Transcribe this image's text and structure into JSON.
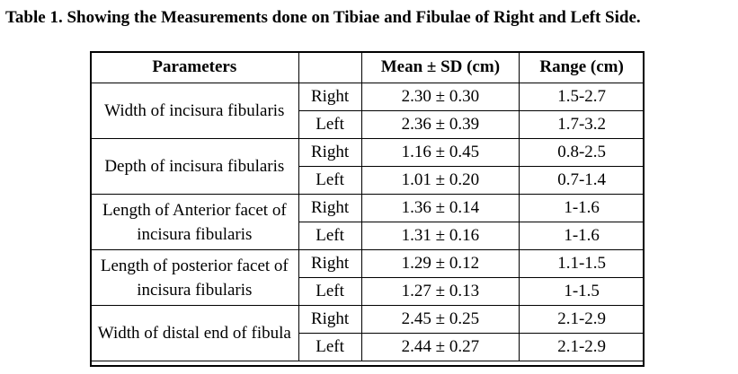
{
  "caption": {
    "label": "Table 1.",
    "text": "Showing the Measurements done on Tibiae and Fibulae of Right and Left Side."
  },
  "table": {
    "headers": [
      "Parameters",
      "",
      "Mean ± SD (cm)",
      "Range (cm)"
    ],
    "groups": [
      {
        "parameter": "Width of incisura fibularis",
        "rows": [
          {
            "side": "Right",
            "mean_sd": "2.30 ± 0.30",
            "range": "1.5-2.7"
          },
          {
            "side": "Left",
            "mean_sd": "2.36 ± 0.39",
            "range": "1.7-3.2"
          }
        ]
      },
      {
        "parameter": "Depth of incisura fibularis",
        "rows": [
          {
            "side": "Right",
            "mean_sd": "1.16 ± 0.45",
            "range": "0.8-2.5"
          },
          {
            "side": "Left",
            "mean_sd": "1.01 ± 0.20",
            "range": "0.7-1.4"
          }
        ]
      },
      {
        "parameter": "Length of Anterior facet of incisura fibularis",
        "rows": [
          {
            "side": "Right",
            "mean_sd": "1.36 ± 0.14",
            "range": "1-1.6"
          },
          {
            "side": "Left",
            "mean_sd": "1.31 ± 0.16",
            "range": "1-1.6"
          }
        ]
      },
      {
        "parameter": "Length of posterior facet of incisura fibularis",
        "rows": [
          {
            "side": "Right",
            "mean_sd": "1.29 ± 0.12",
            "range": "1.1-1.5"
          },
          {
            "side": "Left",
            "mean_sd": "1.27 ± 0.13",
            "range": "1-1.5"
          }
        ]
      },
      {
        "parameter": "Width of distal end of fibula",
        "rows": [
          {
            "side": "Right",
            "mean_sd": "2.45 ± 0.25",
            "range": "2.1-2.9"
          },
          {
            "side": "Left",
            "mean_sd": "2.44 ± 0.27",
            "range": "2.1-2.9"
          }
        ]
      }
    ]
  }
}
